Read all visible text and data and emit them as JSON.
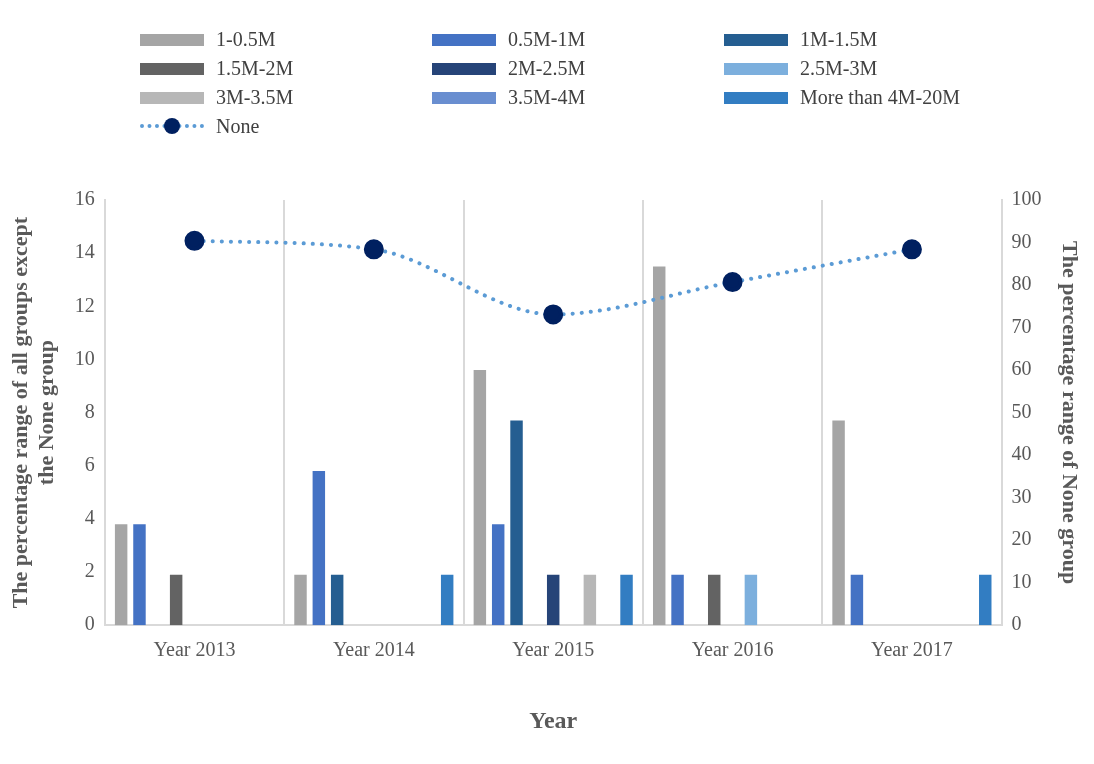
{
  "chart_data": {
    "type": "bar",
    "xlabel": "Year",
    "ylabel": "The percentage range of all groups except the None group",
    "y2label": "The percentage range of None group",
    "categories": [
      "Year 2013",
      "Year 2014",
      "Year 2015",
      "Year 2016",
      "Year 2017"
    ],
    "series": [
      {
        "name": "1-0.5M",
        "color": "#a5a5a5",
        "values": [
          3.8,
          1.9,
          9.6,
          13.5,
          7.7
        ]
      },
      {
        "name": "0.5M-1M",
        "color": "#4472c4",
        "values": [
          3.8,
          5.8,
          3.8,
          1.9,
          1.9
        ]
      },
      {
        "name": "1M-1.5M",
        "color": "#255e91",
        "values": [
          0,
          1.9,
          7.7,
          0,
          0
        ]
      },
      {
        "name": "1.5M-2M",
        "color": "#636363",
        "values": [
          1.9,
          0,
          0,
          1.9,
          0
        ]
      },
      {
        "name": "2M-2.5M",
        "color": "#264478",
        "values": [
          0,
          0,
          1.9,
          0,
          0
        ]
      },
      {
        "name": "2.5M-3M",
        "color": "#7cafdd",
        "values": [
          0,
          0,
          0,
          1.9,
          0
        ]
      },
      {
        "name": "3M-3.5M",
        "color": "#b7b7b7",
        "values": [
          0,
          0,
          1.9,
          0,
          0
        ]
      },
      {
        "name": "3.5M-4M",
        "color": "#698ed0",
        "values": [
          0,
          0,
          0,
          0,
          0
        ]
      },
      {
        "name": "More than 4M-20M",
        "color": "#327dc2",
        "values": [
          0,
          1.9,
          1.9,
          0,
          1.9
        ]
      },
      {
        "name": "None",
        "type": "line",
        "axis": "y2",
        "color": "#5b9bd5",
        "marker": "circle",
        "line_style": "dotted",
        "values": [
          90.4,
          88.4,
          73.1,
          80.7,
          88.4
        ]
      }
    ],
    "ylim": [
      0,
      16
    ],
    "yticks": [
      0,
      2,
      4,
      6,
      8,
      10,
      12,
      14,
      16
    ],
    "y2lim": [
      0,
      100
    ],
    "y2ticks": [
      0,
      10,
      20,
      30,
      40,
      50,
      60,
      70,
      80,
      90,
      100
    ],
    "grid": "x",
    "legend": "top"
  }
}
